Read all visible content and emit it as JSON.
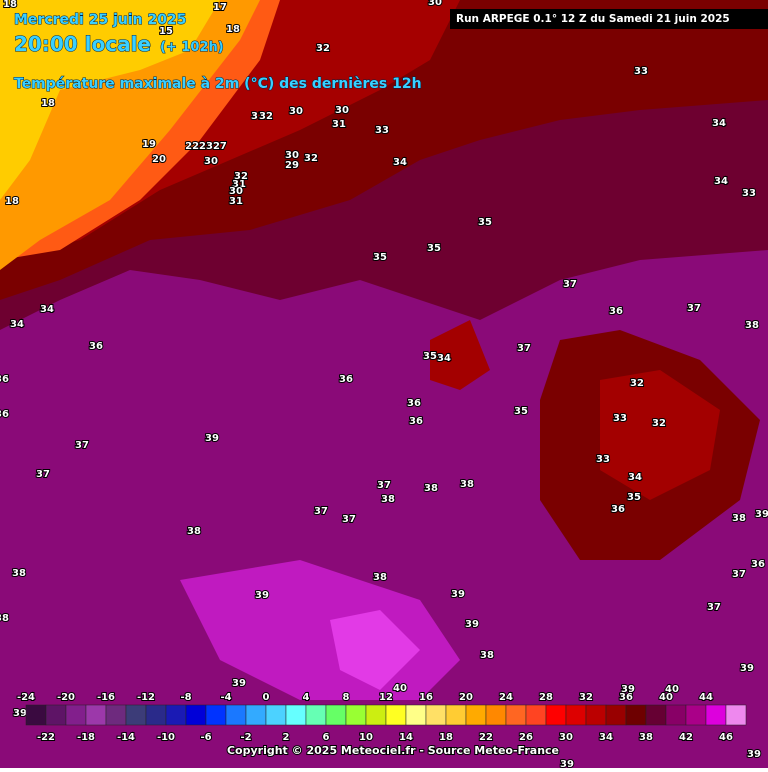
{
  "header": {
    "date": "Mercredi 25 juin 2025",
    "time": "20:00 locale",
    "lead": "(+ 102h)",
    "title": "Température maximale à 2m (°C) des dernières 12h"
  },
  "run": "Run ARPEGE 0.1° 12 Z du Samedi 21 juin 2025",
  "map_labels": [
    "18",
    "17",
    "30",
    "18",
    "15",
    "32",
    "33",
    "18",
    "31",
    "32",
    "30",
    "30",
    "31",
    "33",
    "34",
    "19",
    "222327",
    "20",
    "30",
    "32",
    "30",
    "29",
    "34",
    "32",
    "31",
    "30",
    "31",
    "34",
    "33",
    "18",
    "35",
    "35",
    "35",
    "37",
    "34",
    "36",
    "37",
    "34",
    "38",
    "36",
    "37",
    "35",
    "34",
    "36",
    "36",
    "32",
    "36",
    "35",
    "36",
    "36",
    "33",
    "32",
    "39",
    "37",
    "33",
    "37",
    "34",
    "37",
    "38",
    "38",
    "38",
    "35",
    "37",
    "37",
    "36",
    "38",
    "39",
    "38",
    "36",
    "37",
    "38",
    "38",
    "39",
    "39",
    "38",
    "37",
    "39",
    "38",
    "39",
    "39",
    "40",
    "39",
    "40",
    "39",
    "39",
    "39"
  ],
  "legend": {
    "ticks": [
      -24,
      -22,
      -20,
      -18,
      -16,
      -14,
      -12,
      -10,
      -8,
      -6,
      -4,
      -2,
      0,
      2,
      4,
      6,
      8,
      10,
      12,
      14,
      16,
      18,
      20,
      22,
      24,
      26,
      28,
      30,
      32,
      34,
      36,
      38,
      40,
      42,
      44,
      46
    ],
    "colors": [
      "#3a0a40",
      "#5e1466",
      "#821f8c",
      "#9c38aa",
      "#6e2a7e",
      "#3c3c78",
      "#2a2a8a",
      "#1a1ab4",
      "#0000d8",
      "#0033ff",
      "#1a78ff",
      "#33aaff",
      "#4cd2ff",
      "#66ffff",
      "#66ffb4",
      "#66ff66",
      "#99ff33",
      "#ccee11",
      "#ffff22",
      "#ffff88",
      "#ffe066",
      "#ffcc33",
      "#ffaa00",
      "#ff8800",
      "#ff6622",
      "#ff4422",
      "#ff0000",
      "#dd0000",
      "#bb0000",
      "#990000",
      "#6e0000",
      "#660033",
      "#880066",
      "#aa0088",
      "#dd00dd",
      "#ee88ee"
    ]
  },
  "copyright": "Copyright © 2025 Meteociel.fr - Source Meteo-France"
}
